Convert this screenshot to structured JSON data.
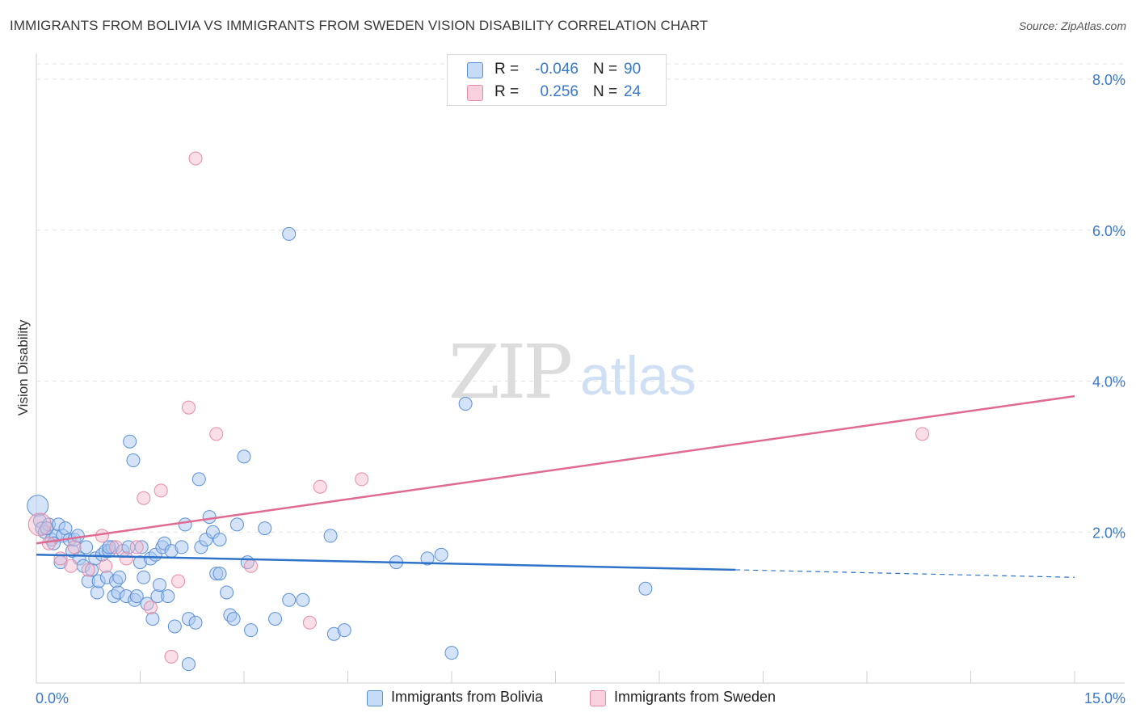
{
  "header": {
    "title": "IMMIGRANTS FROM BOLIVIA VS IMMIGRANTS FROM SWEDEN VISION DISABILITY CORRELATION CHART",
    "source": "Source: ZipAtlas.com"
  },
  "watermark": {
    "zip": "ZIP",
    "atlas": "atlas"
  },
  "legend": {
    "rows": [
      {
        "r_label": "R =",
        "r_value": "-0.046",
        "n_label": "N =",
        "n_value": "90",
        "color": "#a9c8f0"
      },
      {
        "r_label": "R =",
        "r_value": "0.256",
        "n_label": "N =",
        "n_value": "24",
        "color": "#f5b8cb"
      }
    ]
  },
  "bottom_legend": {
    "bolivia": "Immigrants from Bolivia",
    "sweden": "Immigrants from Sweden"
  },
  "chart_data": {
    "type": "scatter",
    "title": "IMMIGRANTS FROM BOLIVIA VS IMMIGRANTS FROM SWEDEN VISION DISABILITY CORRELATION CHART",
    "xlabel": "",
    "ylabel": "Vision Disability",
    "xlim": [
      0,
      15
    ],
    "ylim": [
      0,
      8
    ],
    "x_tick_labels": [
      "0.0%",
      "15.0%"
    ],
    "y_ticks": [
      2,
      4,
      6,
      8
    ],
    "y_tick_labels": [
      "2.0%",
      "4.0%",
      "6.0%",
      "8.0%"
    ],
    "grid": true,
    "colors": {
      "bolivia_fill": "#a9c8f0",
      "bolivia_stroke": "#5b8fd6",
      "bolivia_line": "#2f73c9",
      "sweden_fill": "#f5b8cb",
      "sweden_stroke": "#e58aa6",
      "sweden_line": "#e06a92",
      "axis_label": "#3a78c9"
    },
    "series": [
      {
        "name": "Immigrants from Bolivia",
        "trend": {
          "x0": 0,
          "y0": 1.7,
          "x1": 10.1,
          "y1": 1.5,
          "dash_x1": 15,
          "dash_y1": 1.4
        },
        "points": [
          [
            0.02,
            2.35
          ],
          [
            0.05,
            2.15
          ],
          [
            0.08,
            2.05
          ],
          [
            0.12,
            2.0
          ],
          [
            0.18,
            2.1
          ],
          [
            0.22,
            1.9
          ],
          [
            0.28,
            1.95
          ],
          [
            0.32,
            2.1
          ],
          [
            0.35,
            1.6
          ],
          [
            0.38,
            1.95
          ],
          [
            0.42,
            2.05
          ],
          [
            0.48,
            1.9
          ],
          [
            0.52,
            1.75
          ],
          [
            0.55,
            1.9
          ],
          [
            0.6,
            1.95
          ],
          [
            0.62,
            1.65
          ],
          [
            0.68,
            1.55
          ],
          [
            0.72,
            1.8
          ],
          [
            0.75,
            1.35
          ],
          [
            0.8,
            1.5
          ],
          [
            0.85,
            1.65
          ],
          [
            0.88,
            1.2
          ],
          [
            0.9,
            1.35
          ],
          [
            0.95,
            1.7
          ],
          [
            1.0,
            1.75
          ],
          [
            1.02,
            1.4
          ],
          [
            1.05,
            1.75
          ],
          [
            1.1,
            1.8
          ],
          [
            1.12,
            1.15
          ],
          [
            1.15,
            1.35
          ],
          [
            1.18,
            1.2
          ],
          [
            1.2,
            1.4
          ],
          [
            1.25,
            1.75
          ],
          [
            1.3,
            1.15
          ],
          [
            1.33,
            1.8
          ],
          [
            1.35,
            3.2
          ],
          [
            1.4,
            2.95
          ],
          [
            1.42,
            1.1
          ],
          [
            1.45,
            1.15
          ],
          [
            1.5,
            1.6
          ],
          [
            1.52,
            1.8
          ],
          [
            1.55,
            1.4
          ],
          [
            1.6,
            1.05
          ],
          [
            1.65,
            1.65
          ],
          [
            1.68,
            0.85
          ],
          [
            1.72,
            1.7
          ],
          [
            1.75,
            1.15
          ],
          [
            1.78,
            1.3
          ],
          [
            1.82,
            1.8
          ],
          [
            1.85,
            1.85
          ],
          [
            1.9,
            1.15
          ],
          [
            1.95,
            1.75
          ],
          [
            2.0,
            0.75
          ],
          [
            2.1,
            1.8
          ],
          [
            2.15,
            2.1
          ],
          [
            2.2,
            0.85
          ],
          [
            2.3,
            0.8
          ],
          [
            2.35,
            2.7
          ],
          [
            2.38,
            1.8
          ],
          [
            2.45,
            1.9
          ],
          [
            2.5,
            2.2
          ],
          [
            2.55,
            2.0
          ],
          [
            2.6,
            1.45
          ],
          [
            2.65,
            1.45
          ],
          [
            2.65,
            1.9
          ],
          [
            2.75,
            1.2
          ],
          [
            2.8,
            0.9
          ],
          [
            2.85,
            0.85
          ],
          [
            2.9,
            2.1
          ],
          [
            3.0,
            3.0
          ],
          [
            3.05,
            1.6
          ],
          [
            3.1,
            0.7
          ],
          [
            3.3,
            2.05
          ],
          [
            3.45,
            0.85
          ],
          [
            3.65,
            1.1
          ],
          [
            3.65,
            5.95
          ],
          [
            3.85,
            1.1
          ],
          [
            4.25,
            1.95
          ],
          [
            4.3,
            0.65
          ],
          [
            4.45,
            0.7
          ],
          [
            5.2,
            1.6
          ],
          [
            5.65,
            1.65
          ],
          [
            5.85,
            1.7
          ],
          [
            6.0,
            0.4
          ],
          [
            6.2,
            3.7
          ],
          [
            8.8,
            1.25
          ],
          [
            2.2,
            0.25
          ],
          [
            1.05,
            1.8
          ],
          [
            0.25,
            1.85
          ],
          [
            0.15,
            2.05
          ]
        ]
      },
      {
        "name": "Immigrants from Sweden",
        "trend": {
          "x0": 0,
          "y0": 1.85,
          "x1": 15,
          "y1": 3.8
        },
        "points": [
          [
            0.05,
            2.1
          ],
          [
            0.18,
            1.85
          ],
          [
            0.35,
            1.65
          ],
          [
            0.5,
            1.55
          ],
          [
            0.55,
            1.8
          ],
          [
            0.75,
            1.5
          ],
          [
            0.95,
            1.95
          ],
          [
            1.15,
            1.8
          ],
          [
            1.3,
            1.65
          ],
          [
            1.45,
            1.8
          ],
          [
            1.55,
            2.45
          ],
          [
            1.65,
            1.0
          ],
          [
            1.8,
            2.55
          ],
          [
            1.95,
            0.35
          ],
          [
            2.05,
            1.35
          ],
          [
            2.2,
            3.65
          ],
          [
            2.3,
            6.95
          ],
          [
            2.6,
            3.3
          ],
          [
            3.1,
            1.55
          ],
          [
            3.95,
            0.8
          ],
          [
            4.1,
            2.6
          ],
          [
            4.7,
            2.7
          ],
          [
            12.8,
            3.3
          ],
          [
            1.0,
            1.55
          ]
        ]
      }
    ]
  }
}
